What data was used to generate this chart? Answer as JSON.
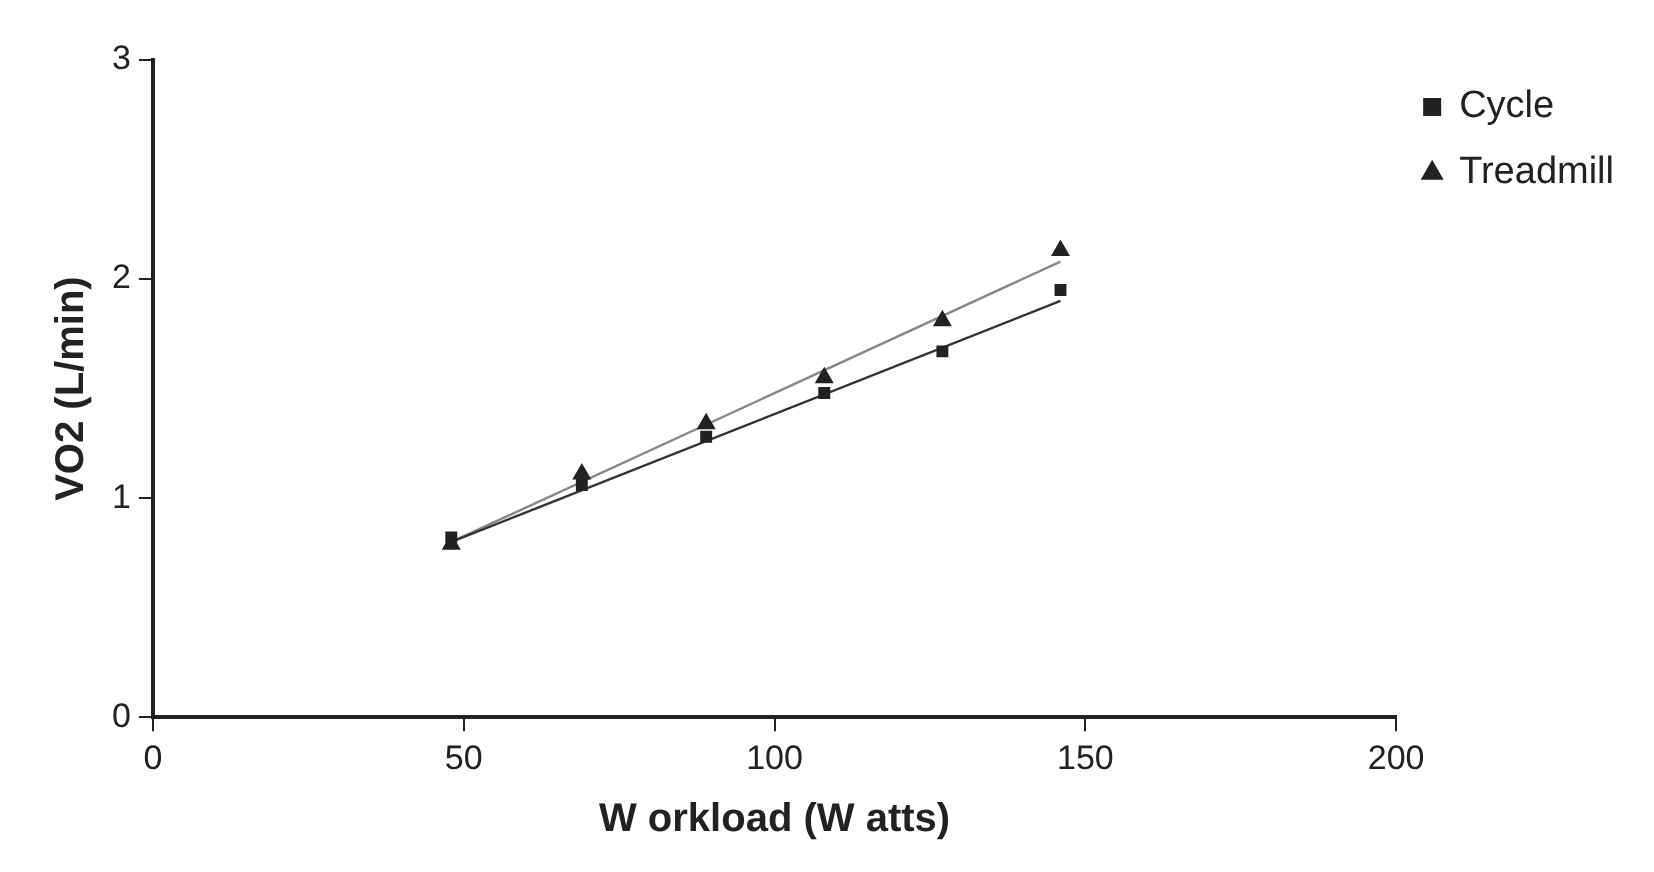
{
  "chart_data": {
    "type": "scatter",
    "xlabel": "W orkload (W atts)",
    "ylabel": "VO2 (L/min)",
    "xlim": [
      0,
      200
    ],
    "xticks": [
      0,
      50,
      100,
      150,
      200
    ],
    "ylim": [
      0,
      3
    ],
    "yticks": [
      0,
      1,
      2,
      3
    ],
    "grid": false,
    "legend": "top right",
    "series": [
      {
        "name": "Cycle",
        "color": "#222222",
        "marker": "square",
        "x": [
          48,
          69,
          89,
          108,
          127,
          146
        ],
        "values": [
          0.82,
          1.06,
          1.28,
          1.48,
          1.67,
          1.95
        ]
      },
      {
        "name": "Treadmill",
        "color": "#222222",
        "marker": "triangle",
        "x": [
          48,
          69,
          89,
          108,
          127,
          146
        ],
        "values": [
          0.79,
          1.11,
          1.34,
          1.55,
          1.81,
          2.13
        ]
      },
      {
        "type": "line",
        "color": "#333333",
        "marker": "none",
        "x": [
          48,
          146
        ],
        "values": [
          0.8,
          1.9
        ]
      },
      {
        "type": "line",
        "color": "#888888",
        "marker": "none",
        "x": [
          48,
          146
        ],
        "values": [
          0.8,
          2.08
        ]
      }
    ]
  }
}
